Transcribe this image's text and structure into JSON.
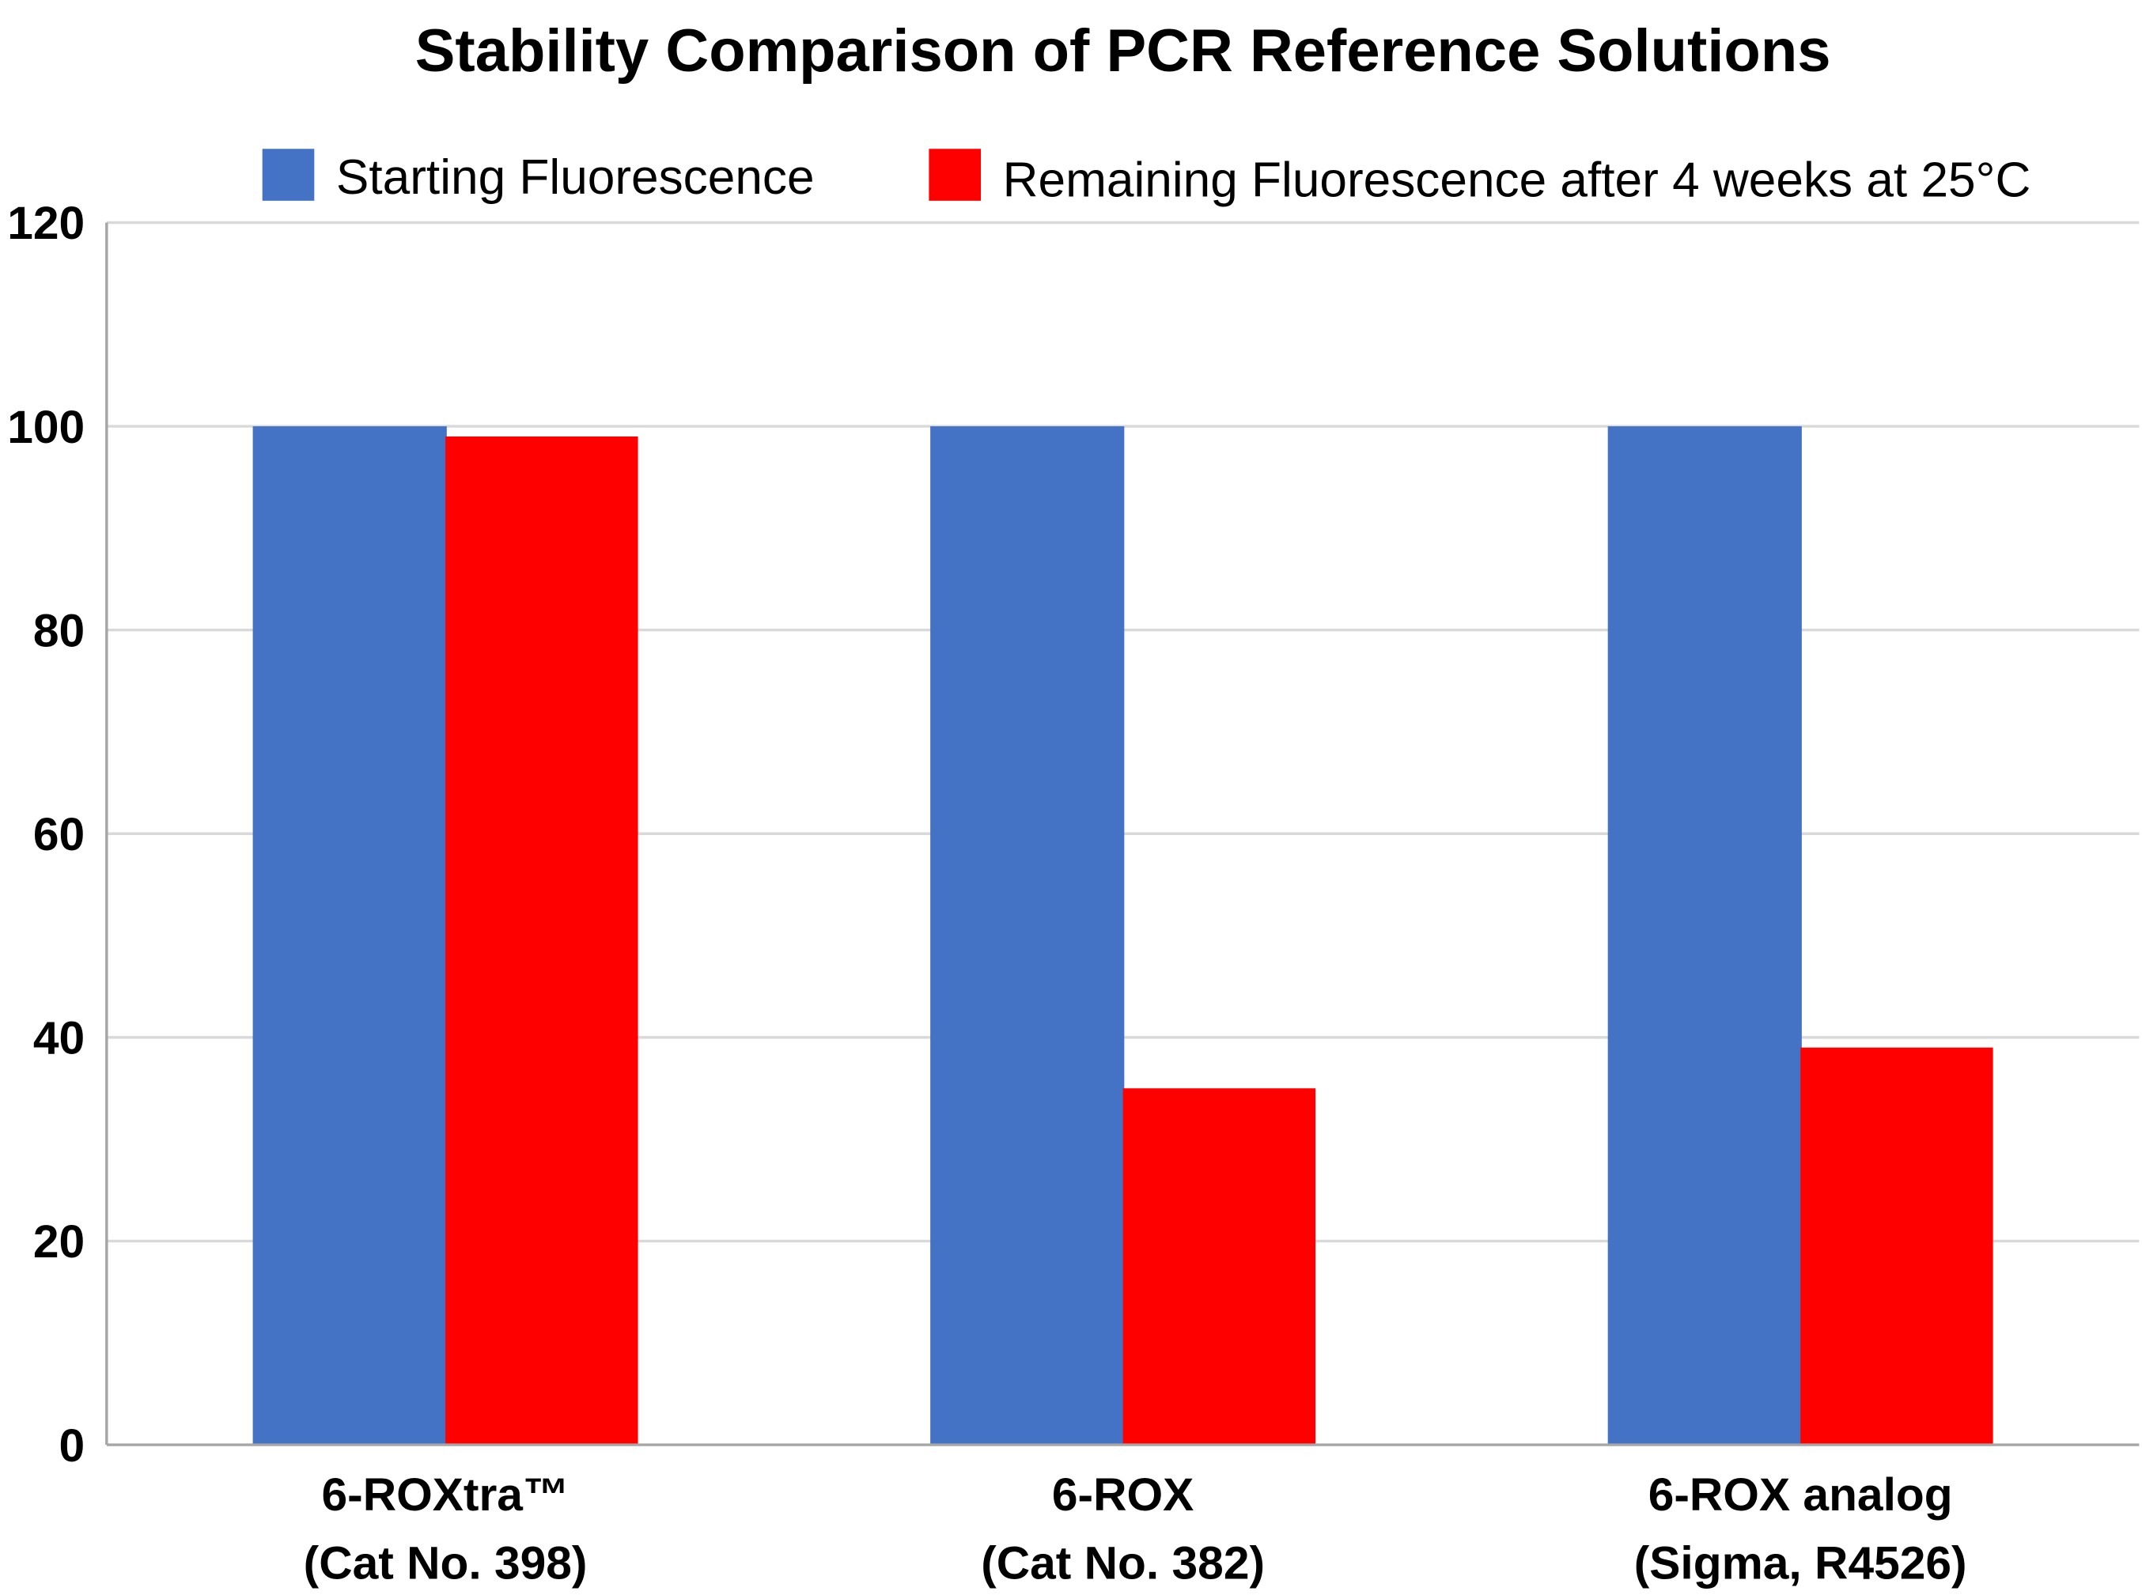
{
  "chart_data": {
    "type": "bar",
    "title": "Stability Comparison of PCR Reference Solutions",
    "categories": [
      [
        "6-ROXtra™",
        "(Cat No. 398)"
      ],
      [
        "6-ROX",
        "(Cat No. 382)"
      ],
      [
        "6-ROX analog",
        "(Sigma, R4526)"
      ]
    ],
    "series": [
      {
        "name": "Starting Fluorescence",
        "color": "#4472C4",
        "values": [
          100,
          100,
          100
        ]
      },
      {
        "name": "Remaining Fluorescence after 4 weeks at 25°C",
        "color": "#FF0000",
        "values": [
          99,
          35,
          39
        ]
      }
    ],
    "xlabel": "",
    "ylabel": "",
    "ylim": [
      0,
      120
    ],
    "yticks": [
      "0",
      "20",
      "40",
      "60",
      "80",
      "100",
      "120"
    ],
    "grid": true,
    "legend_position": "top"
  }
}
